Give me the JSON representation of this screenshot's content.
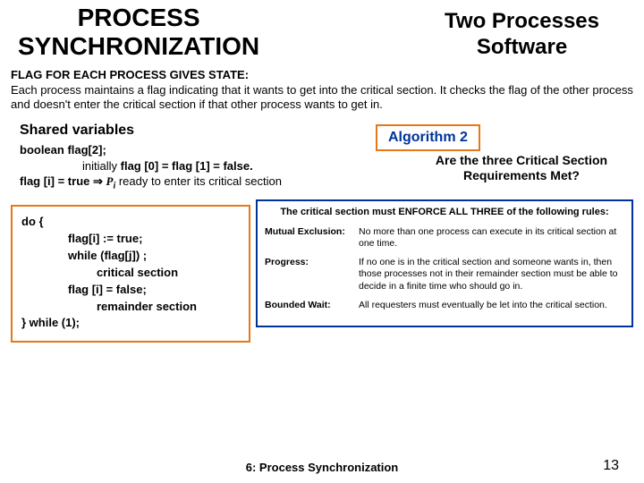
{
  "header": {
    "left_title_line1": "PROCESS",
    "left_title_line2": "SYNCHRONIZATION",
    "right_title_line1": "Two Processes",
    "right_title_line2": "Software"
  },
  "intro": {
    "heading": "FLAG FOR EACH PROCESS GIVES STATE:",
    "body": "Each process maintains a flag indicating that it wants to get into the critical section. It checks the flag of the other process and doesn't enter the critical section if that other process wants to get in."
  },
  "shared": {
    "heading": "Shared variables",
    "line1": "boolean flag[2];",
    "line2_prefix": "initially ",
    "line2_bold": "flag [0] = flag [1] = false.",
    "line3_lhs": "flag [i] = true",
    "line3_arrow": " ⇒ ",
    "line3_pi": "P",
    "line3_sub": "i",
    "line3_tail": " ready to enter its critical section"
  },
  "badge": {
    "label": "Algorithm 2"
  },
  "question": {
    "line1": "Are the three Critical Section",
    "line2": "Requirements Met?"
  },
  "code": {
    "l1": "do {",
    "l2": "flag[i] := true;",
    "l3": "while (flag[j]) ;",
    "l4": "critical section",
    "l5": "flag [i] = false;",
    "l6": "remainder section",
    "l7": "} while (1);"
  },
  "rules": {
    "title": "The critical section must ENFORCE ALL THREE of the following rules:",
    "r1_label": "Mutual Exclusion:",
    "r1_text": "No more than one process can execute in its critical section at one time.",
    "r2_label": "Progress:",
    "r2_text": "If no one is in the critical section and someone wants in, then those processes not in their remainder section must be able to decide in a finite time who should go in.",
    "r3_label": "Bounded Wait:",
    "r3_text": "All requesters must eventually be let into the critical section."
  },
  "footer": {
    "text": "6: Process Synchronization",
    "pagenum": "13"
  },
  "colors": {
    "orange": "#e67817",
    "blue": "#003399"
  }
}
